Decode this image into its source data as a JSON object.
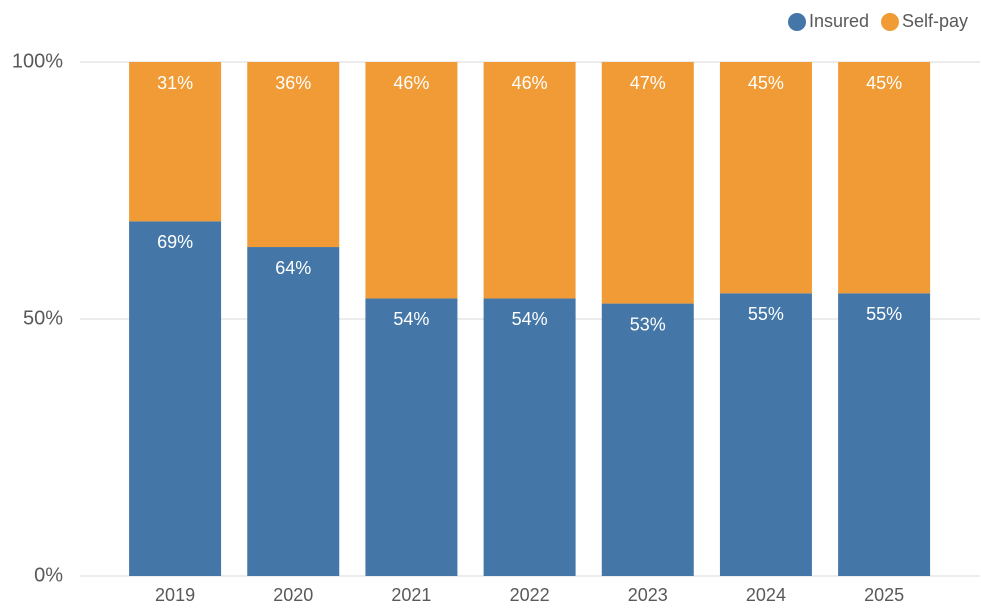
{
  "chart_data": {
    "type": "stacked_bar",
    "categories": [
      "2019",
      "2020",
      "2021",
      "2022",
      "2023",
      "2024",
      "2025"
    ],
    "series": [
      {
        "name": "Insured",
        "color": "#4477a8",
        "values": [
          69,
          64,
          54,
          54,
          53,
          55,
          55
        ],
        "value_labels": [
          "69%",
          "64%",
          "54%",
          "54%",
          "53%",
          "55%",
          "55%"
        ]
      },
      {
        "name": "Self-pay",
        "color": "#f09b36",
        "values": [
          31,
          36,
          46,
          46,
          47,
          45,
          45
        ],
        "value_labels": [
          "31%",
          "36%",
          "46%",
          "46%",
          "47%",
          "45%",
          "45%"
        ]
      }
    ],
    "ylim": [
      0,
      100
    ],
    "yticks": [
      {
        "value": 0,
        "label": "0%"
      },
      {
        "value": 50,
        "label": "50%"
      },
      {
        "value": 100,
        "label": "100%"
      }
    ],
    "grid": true,
    "legend": "top-right"
  }
}
